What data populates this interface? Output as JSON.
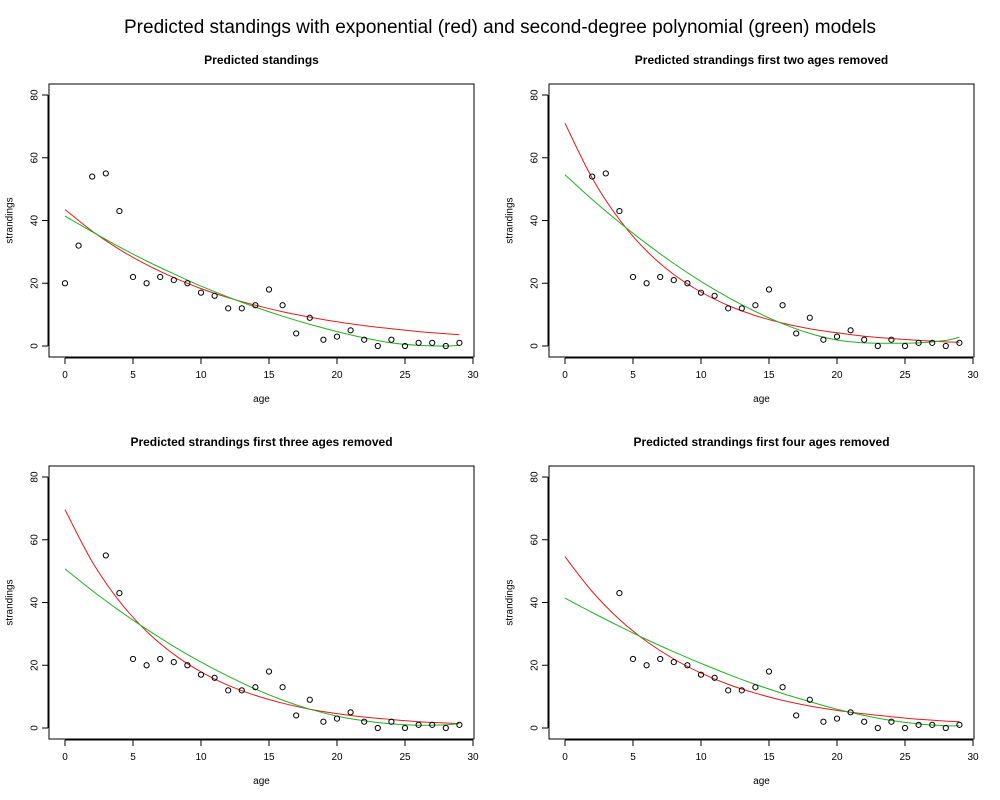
{
  "figure": {
    "title": "Predicted standings with exponential (red) and second-degree polynomial (green) models"
  },
  "colors": {
    "exponential": "#e41a1c",
    "polynomial": "#22b022",
    "points": "#000000",
    "axes": "#000000"
  },
  "chart_data": [
    {
      "type": "scatter",
      "title": "Predicted standings",
      "xlabel": "age",
      "ylabel": "strandings",
      "xlim": [
        0,
        30
      ],
      "ylim": [
        0,
        80
      ],
      "xticks": [
        0,
        5,
        10,
        15,
        20,
        25,
        30
      ],
      "yticks": [
        0,
        20,
        40,
        60,
        80
      ],
      "grid": false,
      "points": {
        "x": [
          0,
          1,
          2,
          3,
          4,
          5,
          6,
          7,
          8,
          9,
          10,
          11,
          12,
          13,
          14,
          15,
          16,
          17,
          18,
          19,
          20,
          21,
          22,
          23,
          24,
          25,
          26,
          27,
          28,
          29
        ],
        "y": [
          20,
          32,
          54,
          55,
          43,
          22,
          20,
          22,
          21,
          20,
          17,
          16,
          12,
          12,
          13,
          18,
          13,
          4,
          9,
          2,
          3,
          5,
          2,
          0,
          2,
          0,
          1,
          1,
          0,
          1
        ]
      },
      "series": [
        {
          "model": "exponential",
          "color": "#e41a1c",
          "x": [
            0,
            2,
            4,
            6,
            8,
            10,
            12,
            14,
            16,
            18,
            20,
            22,
            24,
            26,
            28,
            29
          ],
          "y": [
            43.5,
            36.6,
            30.8,
            25.9,
            21.8,
            18.3,
            15.4,
            13.0,
            10.9,
            9.2,
            7.7,
            6.5,
            5.5,
            4.6,
            3.9,
            3.6
          ]
        },
        {
          "model": "polynomial",
          "color": "#22b022",
          "x": [
            0,
            2,
            4,
            6,
            8,
            10,
            12,
            14,
            16,
            18,
            20,
            22,
            24,
            26,
            28,
            29
          ],
          "y": [
            41.4,
            36.4,
            31.6,
            27.1,
            23.0,
            19.1,
            15.6,
            12.4,
            9.5,
            6.9,
            4.6,
            2.6,
            1.0,
            0.2,
            0.0,
            0.2
          ]
        }
      ]
    },
    {
      "type": "scatter",
      "title": "Predicted strandings first two ages removed",
      "xlabel": "age",
      "ylabel": "strandings",
      "xlim": [
        0,
        30
      ],
      "ylim": [
        0,
        80
      ],
      "xticks": [
        0,
        5,
        10,
        15,
        20,
        25,
        30
      ],
      "yticks": [
        0,
        20,
        40,
        60,
        80
      ],
      "grid": false,
      "points": {
        "x": [
          2,
          3,
          4,
          5,
          6,
          7,
          8,
          9,
          10,
          11,
          12,
          13,
          14,
          15,
          16,
          17,
          18,
          19,
          20,
          21,
          22,
          23,
          24,
          25,
          26,
          27,
          28,
          29
        ],
        "y": [
          54,
          55,
          43,
          22,
          20,
          22,
          21,
          20,
          17,
          16,
          12,
          12,
          13,
          18,
          13,
          4,
          9,
          2,
          3,
          5,
          2,
          0,
          2,
          0,
          1,
          1,
          0,
          1
        ]
      },
      "series": [
        {
          "model": "exponential",
          "color": "#e41a1c",
          "x": [
            0,
            2,
            4,
            6,
            8,
            10,
            12,
            14,
            16,
            18,
            20,
            22,
            24,
            26,
            28,
            29
          ],
          "y": [
            71.0,
            53.5,
            40.3,
            30.3,
            22.8,
            17.2,
            12.9,
            9.7,
            7.3,
            5.5,
            4.2,
            3.1,
            2.4,
            1.8,
            1.3,
            1.2
          ]
        },
        {
          "model": "polynomial",
          "color": "#22b022",
          "x": [
            0,
            2,
            4,
            6,
            8,
            10,
            12,
            14,
            16,
            18,
            20,
            22,
            24,
            26,
            28,
            29
          ],
          "y": [
            54.6,
            46.7,
            39.4,
            32.6,
            26.3,
            20.6,
            15.5,
            11.0,
            7.1,
            4.0,
            1.9,
            1.0,
            0.9,
            1.0,
            1.8,
            2.8
          ]
        }
      ]
    },
    {
      "type": "scatter",
      "title": "Predicted strandings first three ages removed",
      "xlabel": "age",
      "ylabel": "strandings",
      "xlim": [
        0,
        30
      ],
      "ylim": [
        0,
        80
      ],
      "xticks": [
        0,
        5,
        10,
        15,
        20,
        25,
        30
      ],
      "yticks": [
        0,
        20,
        40,
        60,
        80
      ],
      "grid": false,
      "points": {
        "x": [
          3,
          4,
          5,
          6,
          7,
          8,
          9,
          10,
          11,
          12,
          13,
          14,
          15,
          16,
          17,
          18,
          19,
          20,
          21,
          22,
          23,
          24,
          25,
          26,
          27,
          28,
          29
        ],
        "y": [
          55,
          43,
          22,
          20,
          22,
          21,
          20,
          17,
          16,
          12,
          12,
          13,
          18,
          13,
          4,
          9,
          2,
          3,
          5,
          2,
          0,
          2,
          0,
          1,
          1,
          0,
          1
        ]
      },
      "series": [
        {
          "model": "exponential",
          "color": "#e41a1c",
          "x": [
            0,
            2,
            4,
            6,
            8,
            10,
            12,
            14,
            16,
            18,
            20,
            22,
            24,
            26,
            28,
            29
          ],
          "y": [
            69.6,
            53.0,
            40.4,
            30.8,
            23.5,
            17.9,
            13.6,
            10.4,
            7.9,
            6.0,
            4.6,
            3.5,
            2.7,
            2.0,
            1.6,
            1.4
          ]
        },
        {
          "model": "polynomial",
          "color": "#22b022",
          "x": [
            0,
            2,
            4,
            6,
            8,
            10,
            12,
            14,
            16,
            18,
            20,
            22,
            24,
            26,
            28,
            29
          ],
          "y": [
            50.7,
            43.8,
            37.4,
            31.5,
            26.0,
            21.0,
            16.5,
            12.4,
            8.9,
            6.0,
            3.8,
            2.3,
            1.3,
            0.9,
            1.0,
            1.4
          ]
        }
      ]
    },
    {
      "type": "scatter",
      "title": "Predicted strandings first four ages removed",
      "xlabel": "age",
      "ylabel": "strandings",
      "xlim": [
        0,
        30
      ],
      "ylim": [
        0,
        80
      ],
      "xticks": [
        0,
        5,
        10,
        15,
        20,
        25,
        30
      ],
      "yticks": [
        0,
        20,
        40,
        60,
        80
      ],
      "grid": false,
      "points": {
        "x": [
          4,
          5,
          6,
          7,
          8,
          9,
          10,
          11,
          12,
          13,
          14,
          15,
          16,
          17,
          18,
          19,
          20,
          21,
          22,
          23,
          24,
          25,
          26,
          27,
          28,
          29
        ],
        "y": [
          43,
          22,
          20,
          22,
          21,
          20,
          17,
          16,
          12,
          12,
          13,
          18,
          13,
          4,
          9,
          2,
          3,
          5,
          2,
          0,
          2,
          0,
          1,
          1,
          0,
          1
        ]
      },
      "series": [
        {
          "model": "exponential",
          "color": "#e41a1c",
          "x": [
            0,
            2,
            4,
            6,
            8,
            10,
            12,
            14,
            16,
            18,
            20,
            22,
            24,
            26,
            28,
            29
          ],
          "y": [
            54.6,
            43.5,
            34.6,
            27.6,
            22.0,
            17.5,
            13.9,
            11.1,
            8.8,
            7.0,
            5.6,
            4.5,
            3.6,
            2.8,
            2.2,
            2.0
          ]
        },
        {
          "model": "polynomial",
          "color": "#22b022",
          "x": [
            0,
            2,
            4,
            6,
            8,
            10,
            12,
            14,
            16,
            18,
            20,
            22,
            24,
            26,
            28,
            29
          ],
          "y": [
            41.4,
            36.8,
            32.4,
            28.2,
            24.3,
            20.6,
            17.1,
            13.9,
            11.0,
            8.4,
            6.0,
            4.0,
            2.4,
            1.3,
            0.7,
            0.7
          ]
        }
      ]
    }
  ]
}
